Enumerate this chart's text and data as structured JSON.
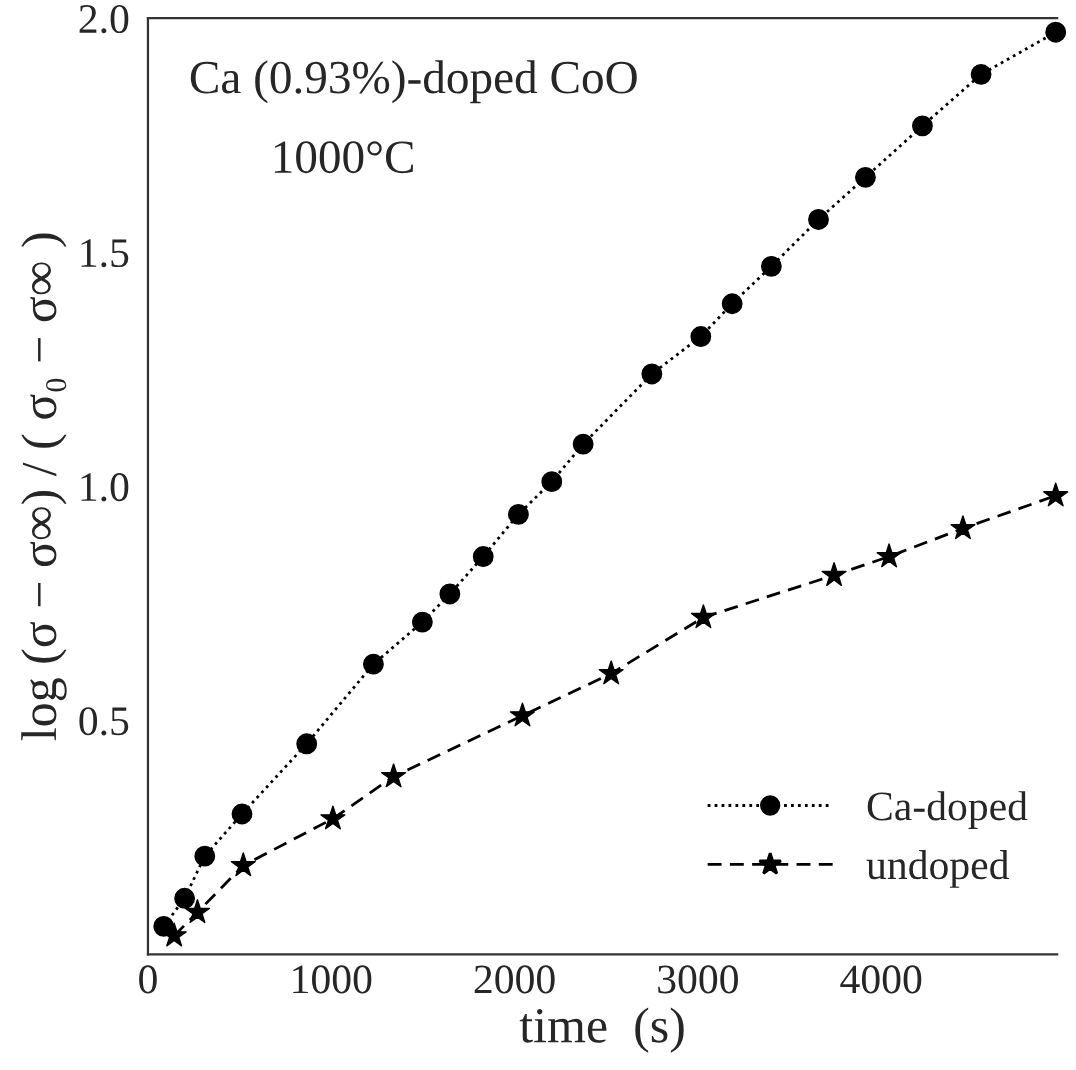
{
  "chart_data": {
    "type": "line",
    "xlabel": "time  (s)",
    "ylabel": "log (σ − σ∞) / ( σ₀ − σ∞ )",
    "annotations": [
      "Ca (0.93%)-doped CoO",
      "1000°C"
    ],
    "xlim": [
      0,
      4960
    ],
    "ylim": [
      0,
      2.0
    ],
    "xticks": [
      {
        "value": 0,
        "label": "0"
      },
      1000,
      2000,
      3000,
      4000
    ],
    "yticks": [
      {
        "value": 0.5,
        "label": "0.5"
      },
      {
        "value": 1.0,
        "label": "1.0"
      },
      {
        "value": 1.5,
        "label": "1.5"
      },
      {
        "value": 2.0,
        "label": "2.0"
      }
    ],
    "grid": false,
    "legend": "bottom right",
    "series": [
      {
        "name": "Ca-doped",
        "color": "#000000",
        "marker": "circle",
        "line_style": "dotted",
        "x": [
          86,
          200,
          310,
          513,
          866,
          1230,
          1497,
          1647,
          1829,
          2021,
          2203,
          2374,
          2749,
          3016,
          3187,
          3401,
          3658,
          3914,
          4225,
          4545,
          4952
        ],
        "values": [
          0.06,
          0.12,
          0.21,
          0.3,
          0.45,
          0.62,
          0.71,
          0.77,
          0.85,
          0.94,
          1.01,
          1.09,
          1.24,
          1.32,
          1.39,
          1.47,
          1.57,
          1.66,
          1.77,
          1.88,
          1.97
        ]
      },
      {
        "name": "undoped",
        "color": "#000000",
        "marker": "star",
        "line_style": "dashed",
        "x": [
          143,
          270,
          520,
          1009,
          1340,
          2043,
          2527,
          3030,
          3743,
          4043,
          4446,
          4952
        ],
        "values": [
          0.04,
          0.09,
          0.19,
          0.29,
          0.38,
          0.51,
          0.6,
          0.72,
          0.81,
          0.85,
          0.91,
          0.98
        ]
      }
    ]
  }
}
